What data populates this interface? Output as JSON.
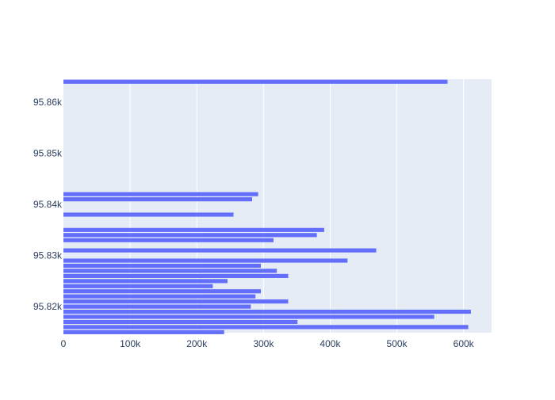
{
  "chart_data": {
    "type": "bar",
    "orientation": "horizontal",
    "title": "",
    "xlabel": "",
    "ylabel": "",
    "xlim": [
      0,
      642000
    ],
    "ylim": [
      95814.9,
      95864.5
    ],
    "grid": true,
    "legend": "none",
    "x_ticks": [
      {
        "value": 0,
        "label": "0"
      },
      {
        "value": 100000,
        "label": "100k"
      },
      {
        "value": 200000,
        "label": "200k"
      },
      {
        "value": 300000,
        "label": "300k"
      },
      {
        "value": 400000,
        "label": "400k"
      },
      {
        "value": 500000,
        "label": "500k"
      },
      {
        "value": 600000,
        "label": "600k"
      }
    ],
    "y_ticks": [
      {
        "value": 95820,
        "label": "95.82k"
      },
      {
        "value": 95830,
        "label": "95.83k"
      },
      {
        "value": 95840,
        "label": "95.84k"
      },
      {
        "value": 95850,
        "label": "95.85k"
      },
      {
        "value": 95860,
        "label": "95.86k"
      }
    ],
    "bars": [
      {
        "y": 95815,
        "x": 241000
      },
      {
        "y": 95816,
        "x": 607000
      },
      {
        "y": 95817,
        "x": 351000
      },
      {
        "y": 95818,
        "x": 556000
      },
      {
        "y": 95819,
        "x": 611000
      },
      {
        "y": 95820,
        "x": 281000
      },
      {
        "y": 95821,
        "x": 337000
      },
      {
        "y": 95822,
        "x": 288000
      },
      {
        "y": 95823,
        "x": 296000
      },
      {
        "y": 95824,
        "x": 224000
      },
      {
        "y": 95825,
        "x": 246000
      },
      {
        "y": 95826,
        "x": 337000
      },
      {
        "y": 95827,
        "x": 320000
      },
      {
        "y": 95828,
        "x": 296000
      },
      {
        "y": 95829,
        "x": 426000
      },
      {
        "y": 95831,
        "x": 469000
      },
      {
        "y": 95833,
        "x": 315000
      },
      {
        "y": 95834,
        "x": 380000
      },
      {
        "y": 95835,
        "x": 391000
      },
      {
        "y": 95838,
        "x": 255000
      },
      {
        "y": 95841,
        "x": 283000
      },
      {
        "y": 95842,
        "x": 292000
      },
      {
        "y": 95864,
        "x": 576000
      }
    ]
  },
  "colors": {
    "bar": "#636efa",
    "plot_bg": "#e5ecf6",
    "grid": "#ffffff",
    "tick_text": "#2a3f5f"
  }
}
